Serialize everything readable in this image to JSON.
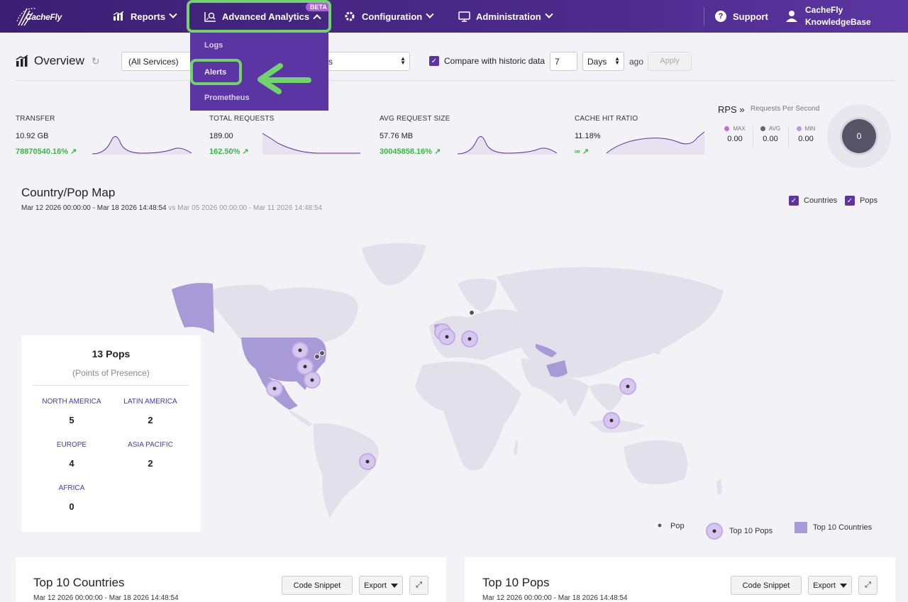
{
  "nav": {
    "logo": "CacheFly",
    "reports": "Reports",
    "advanced_analytics": "Advanced Analytics",
    "beta": "BETA",
    "configuration": "Configuration",
    "administration": "Administration",
    "support": "Support",
    "user_line1": "CacheFly",
    "user_line2": "KnowledgeBase"
  },
  "dropdown": {
    "logs": "Logs",
    "alerts": "Alerts",
    "prometheus": "Prometheus"
  },
  "toolbar": {
    "title": "Overview",
    "service": "(All Services)",
    "range": "ys",
    "compare_label": "Compare with historic data",
    "compare_value": "7",
    "unit": "Days",
    "ago": "ago",
    "apply": "Apply"
  },
  "stats": [
    {
      "label": "TRANSFER",
      "value": "10.92 GB",
      "pct": "78870540.16%"
    },
    {
      "label": "TOTAL REQUESTS",
      "value": "189.00",
      "pct": "162.50%"
    },
    {
      "label": "AVG REQUEST SIZE",
      "value": "57.76 MB",
      "pct": "30045858.16%"
    },
    {
      "label": "CACHE HIT RATIO",
      "value": "11.18%",
      "pct": "∞"
    }
  ],
  "rps": {
    "title": "RPS »",
    "subtitle": "Requests Per Second",
    "max_label": "MAX",
    "max": "0.00",
    "avg_label": "AVG",
    "avg": "0.00",
    "min_label": "MIN",
    "min": "0.00",
    "gauge": "0",
    "colors": {
      "max": "#c36ae0",
      "avg": "#666666",
      "min": "#b69be6"
    }
  },
  "map": {
    "title": "Country/Pop Map",
    "dates": "Mar 12 2026 00:00:00 - Mar 18 2026 14:48:54",
    "vs_dates": "vs Mar 05 2026 00:00:00 - Mar 11 2026 14:48:54",
    "countries": "Countries",
    "pops": "Pops",
    "legend_pop": "Pop",
    "legend_top_pops": "Top 10 Pops",
    "legend_top_countries": "Top 10 Countries"
  },
  "pops_card": {
    "title": "13 Pops",
    "subtitle": "(Points of Presence)",
    "regions": [
      {
        "name": "NORTH AMERICA",
        "value": "5"
      },
      {
        "name": "LATIN AMERICA",
        "value": "2"
      },
      {
        "name": "EUROPE",
        "value": "4"
      },
      {
        "name": "ASIA PACIFIC",
        "value": "2"
      },
      {
        "name": "AFRICA",
        "value": "0"
      }
    ]
  },
  "cards": [
    {
      "title": "Top 10 Countries",
      "dates": "Mar 12 2026 00:00:00 - Mar 18 2026 14:48:54",
      "snippet": "Code Snippet",
      "export": "Export"
    },
    {
      "title": "Top 10 Pops",
      "dates": "Mar 12 2026 00:00:00 - Mar 18 2026 14:48:54",
      "snippet": "Code Snippet",
      "export": "Export"
    }
  ],
  "colors": {
    "brand": "#4b2a8a",
    "highlight": "#6fd46a",
    "accent": "#5b35a3",
    "positive": "#3bb54a"
  }
}
